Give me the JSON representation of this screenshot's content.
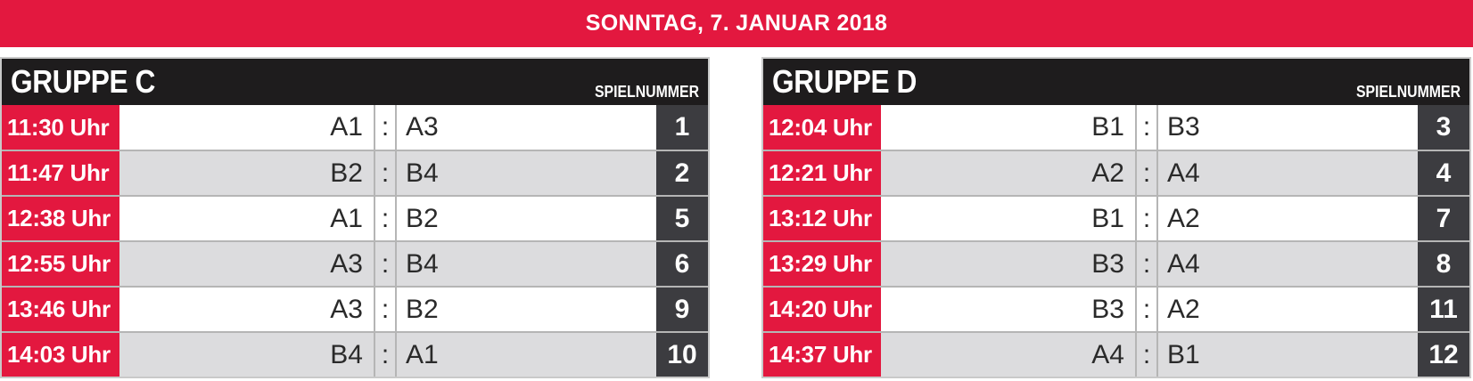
{
  "banner": {
    "date": "SONNTAG, 7. JANUAR 2018"
  },
  "groups": [
    {
      "title": "GRUPPE C",
      "hint": "SPIELNUMMER",
      "matches": [
        {
          "time": "11:30 Uhr",
          "home": "A1",
          "sep": ":",
          "away": "A3",
          "num": "1"
        },
        {
          "time": "11:47 Uhr",
          "home": "B2",
          "sep": ":",
          "away": "B4",
          "num": "2"
        },
        {
          "time": "12:38 Uhr",
          "home": "A1",
          "sep": ":",
          "away": "B2",
          "num": "5"
        },
        {
          "time": "12:55 Uhr",
          "home": "A3",
          "sep": ":",
          "away": "B4",
          "num": "6"
        },
        {
          "time": "13:46 Uhr",
          "home": "A3",
          "sep": ":",
          "away": "B2",
          "num": "9"
        },
        {
          "time": "14:03 Uhr",
          "home": "B4",
          "sep": ":",
          "away": "A1",
          "num": "10"
        }
      ]
    },
    {
      "title": "GRUPPE D",
      "hint": "SPIELNUMMER",
      "matches": [
        {
          "time": "12:04 Uhr",
          "home": "B1",
          "sep": ":",
          "away": "B3",
          "num": "3"
        },
        {
          "time": "12:21 Uhr",
          "home": "A2",
          "sep": ":",
          "away": "A4",
          "num": "4"
        },
        {
          "time": "13:12 Uhr",
          "home": "B1",
          "sep": ":",
          "away": "A2",
          "num": "7"
        },
        {
          "time": "13:29 Uhr",
          "home": "B3",
          "sep": ":",
          "away": "A4",
          "num": "8"
        },
        {
          "time": "14:20 Uhr",
          "home": "B3",
          "sep": ":",
          "away": "A2",
          "num": "11"
        },
        {
          "time": "14:37 Uhr",
          "home": "A4",
          "sep": ":",
          "away": "B1",
          "num": "12"
        }
      ]
    }
  ],
  "colors": {
    "accent": "#e3183f",
    "header": "#1e1c1d",
    "number": "#3c3c40",
    "stripe": "#dcdcde"
  }
}
